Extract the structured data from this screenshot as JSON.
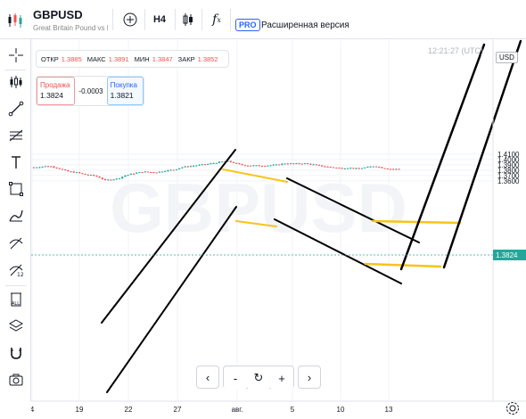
{
  "toolbar": {
    "symbol": "GBPUSD",
    "description": "Great Britain Pound vs B",
    "interval": "H4",
    "pro_badge": "PRO",
    "pro_label": "Расширенная версия",
    "add_icon": "plus-circle-icon",
    "candle_icon": "candlestick-icon",
    "fx_label": "f",
    "fx_sub": "x"
  },
  "legend": {
    "open_label": "ОТКР",
    "open": "1.3885",
    "high_label": "МАКС",
    "high": "1.3891",
    "low_label": "МИН",
    "low": "1.3847",
    "close_label": "ЗАКР",
    "close": "1.3852"
  },
  "trade": {
    "sell_label": "Продажа",
    "sell": "1.3824",
    "spread": "-0.0003",
    "buy_label": "Покупка",
    "buy": "1.3821"
  },
  "time": "12:21:27 (UTC)",
  "currency": "USD",
  "yaxis": [
    {
      "label": "1.4100",
      "v": 1.41
    },
    {
      "label": "1.4000",
      "v": 1.4
    },
    {
      "label": "1.3900",
      "v": 1.39
    },
    {
      "label": "1.3800",
      "v": 1.38
    },
    {
      "label": "1.3700",
      "v": 1.37
    },
    {
      "label": "1.3600",
      "v": 1.36
    }
  ],
  "xaxis": [
    "4",
    "19",
    "22",
    "27",
    "авг.",
    "5",
    "10",
    "13"
  ],
  "nav": {
    "prev": "‹",
    "minus": "-",
    "reset": "↻",
    "plus": "+",
    "next": "›"
  },
  "colors": {
    "up": "#26a69a",
    "down": "#ef5350",
    "trend": "#000000",
    "channel": "#f5c518",
    "grid": "#f0f3fa",
    "last": "#26a69a"
  },
  "left_tools": [
    "crosshair-icon",
    "trendline-icon",
    "candles-icon",
    "line-tool-icon",
    "fib-icon",
    "text-icon",
    "rectangle-icon",
    "brush-icon",
    "measure-icon",
    "zoom-icon",
    "trash-icon",
    "layers-icon",
    "magnet-icon",
    "camera-icon"
  ]
}
